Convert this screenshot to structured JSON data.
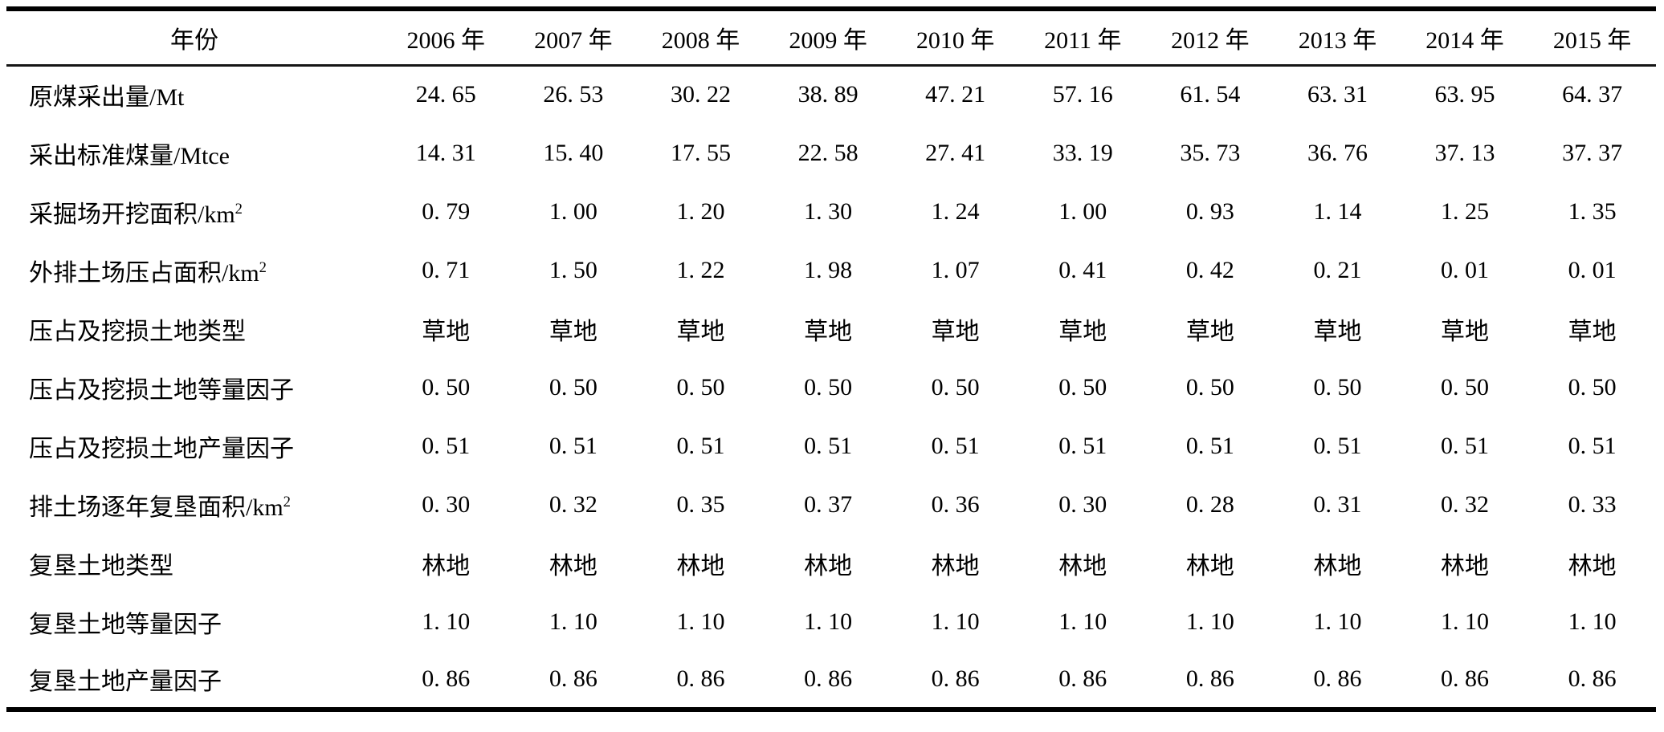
{
  "colors": {
    "text": "#000000",
    "background": "#ffffff",
    "rule": "#000000"
  },
  "table": {
    "header": {
      "stub": "年份",
      "years": [
        "2006 年",
        "2007 年",
        "2008 年",
        "2009 年",
        "2010 年",
        "2011 年",
        "2012 年",
        "2013 年",
        "2014 年",
        "2015 年"
      ]
    },
    "rows": [
      {
        "label": "原煤采出量/Mt",
        "sup": "",
        "values": [
          "24. 65",
          "26. 53",
          "30. 22",
          "38. 89",
          "47. 21",
          "57. 16",
          "61. 54",
          "63. 31",
          "63. 95",
          "64. 37"
        ]
      },
      {
        "label": "采出标准煤量/Mtce",
        "sup": "",
        "values": [
          "14. 31",
          "15. 40",
          "17. 55",
          "22. 58",
          "27. 41",
          "33. 19",
          "35. 73",
          "36. 76",
          "37. 13",
          "37. 37"
        ]
      },
      {
        "label": "采掘场开挖面积/km",
        "sup": "2",
        "values": [
          "0. 79",
          "1. 00",
          "1. 20",
          "1. 30",
          "1. 24",
          "1. 00",
          "0. 93",
          "1. 14",
          "1. 25",
          "1. 35"
        ]
      },
      {
        "label": "外排土场压占面积/km",
        "sup": "2",
        "values": [
          "0. 71",
          "1. 50",
          "1. 22",
          "1. 98",
          "1. 07",
          "0. 41",
          "0. 42",
          "0. 21",
          "0. 01",
          "0. 01"
        ]
      },
      {
        "label": "压占及挖损土地类型",
        "sup": "",
        "values": [
          "草地",
          "草地",
          "草地",
          "草地",
          "草地",
          "草地",
          "草地",
          "草地",
          "草地",
          "草地"
        ]
      },
      {
        "label": "压占及挖损土地等量因子",
        "sup": "",
        "values": [
          "0. 50",
          "0. 50",
          "0. 50",
          "0. 50",
          "0. 50",
          "0. 50",
          "0. 50",
          "0. 50",
          "0. 50",
          "0. 50"
        ]
      },
      {
        "label": "压占及挖损土地产量因子",
        "sup": "",
        "values": [
          "0. 51",
          "0. 51",
          "0. 51",
          "0. 51",
          "0. 51",
          "0. 51",
          "0. 51",
          "0. 51",
          "0. 51",
          "0. 51"
        ]
      },
      {
        "label": "排土场逐年复垦面积/km",
        "sup": "2",
        "values": [
          "0. 30",
          "0. 32",
          "0. 35",
          "0. 37",
          "0. 36",
          "0. 30",
          "0. 28",
          "0. 31",
          "0. 32",
          "0. 33"
        ]
      },
      {
        "label": "复垦土地类型",
        "sup": "",
        "values": [
          "林地",
          "林地",
          "林地",
          "林地",
          "林地",
          "林地",
          "林地",
          "林地",
          "林地",
          "林地"
        ]
      },
      {
        "label": "复垦土地等量因子",
        "sup": "",
        "values": [
          "1. 10",
          "1. 10",
          "1. 10",
          "1. 10",
          "1. 10",
          "1. 10",
          "1. 10",
          "1. 10",
          "1. 10",
          "1. 10"
        ]
      },
      {
        "label": "复垦土地产量因子",
        "sup": "",
        "values": [
          "0. 86",
          "0. 86",
          "0. 86",
          "0. 86",
          "0. 86",
          "0. 86",
          "0. 86",
          "0. 86",
          "0. 86",
          "0. 86"
        ]
      }
    ]
  }
}
